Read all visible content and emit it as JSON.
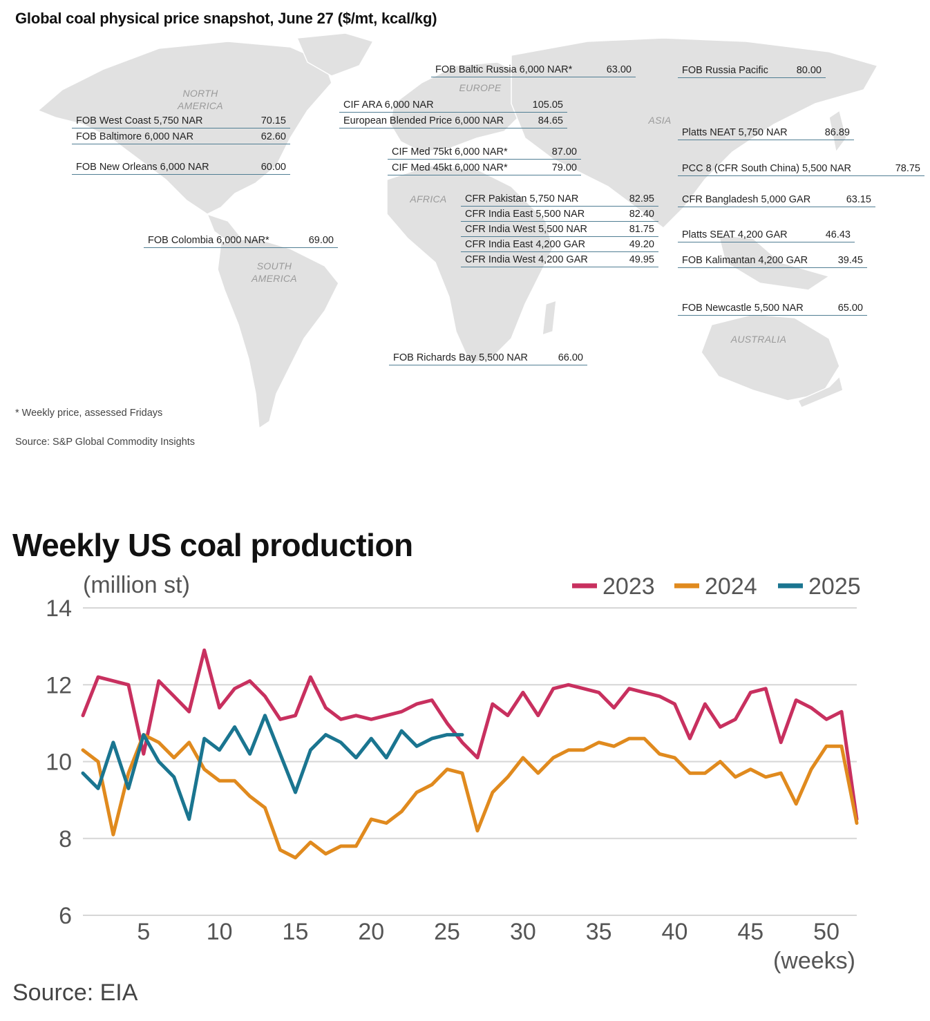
{
  "map": {
    "title": "Global coal physical price snapshot, June 27 ($/mt, kcal/kg)",
    "footnote": "* Weekly price, assessed Fridays",
    "source": "Source: S&P Global Commodity Insights",
    "regions": {
      "north_america": [
        "NORTH",
        "AMERICA"
      ],
      "south_america": [
        "SOUTH",
        "AMERICA"
      ],
      "europe": [
        "EUROPE"
      ],
      "africa": [
        "AFRICA"
      ],
      "asia": [
        "ASIA"
      ],
      "australia": [
        "AUSTRALIA"
      ]
    },
    "prices": [
      {
        "label": "FOB West Coast 5,750 NAR",
        "value": "70.15"
      },
      {
        "label": "FOB Baltimore 6,000 NAR",
        "value": "62.60"
      },
      {
        "label": "FOB New Orleans 6,000 NAR",
        "value": "60.00"
      },
      {
        "label": "FOB Colombia 6,000 NAR*",
        "value": "69.00"
      },
      {
        "label": "FOB Baltic Russia 6,000 NAR*",
        "value": "63.00"
      },
      {
        "label": "CIF ARA 6,000 NAR",
        "value": "105.05"
      },
      {
        "label": "European Blended Price 6,000 NAR",
        "value": "84.65"
      },
      {
        "label": "CIF Med 75kt 6,000 NAR*",
        "value": "87.00"
      },
      {
        "label": "CIF Med 45kt 6,000 NAR*",
        "value": "79.00"
      },
      {
        "label": "CFR Pakistan 5,750 NAR",
        "value": "82.95"
      },
      {
        "label": "CFR India East 5,500 NAR",
        "value": "82.40"
      },
      {
        "label": "CFR India West 5,500 NAR",
        "value": "81.75"
      },
      {
        "label": "CFR India East 4,200 GAR",
        "value": "49.20"
      },
      {
        "label": "CFR India West 4,200 GAR",
        "value": "49.95"
      },
      {
        "label": "FOB Richards Bay 5,500 NAR",
        "value": "66.00"
      },
      {
        "label": "FOB Russia Pacific",
        "value": "80.00"
      },
      {
        "label": "Platts NEAT 5,750 NAR",
        "value": "86.89"
      },
      {
        "label": "PCC 8 (CFR South China) 5,500 NAR",
        "value": "78.75"
      },
      {
        "label": "CFR Bangladesh 5,000 GAR",
        "value": "63.15"
      },
      {
        "label": "Platts SEAT 4,200 GAR",
        "value": "46.43"
      },
      {
        "label": "FOB Kalimantan 4,200 GAR",
        "value": "39.45"
      },
      {
        "label": "FOB Newcastle 5,500 NAR",
        "value": "65.00"
      }
    ]
  },
  "chart_data": {
    "type": "line",
    "title": "Weekly US coal production",
    "ylabel": "(million st)",
    "xlabel": "(weeks)",
    "ylim": [
      6,
      14
    ],
    "xlim": [
      1,
      52
    ],
    "yticks": [
      6,
      8,
      10,
      12,
      14
    ],
    "xticks": [
      5,
      10,
      15,
      20,
      25,
      30,
      35,
      40,
      45,
      50
    ],
    "grid": true,
    "legend_position": "top-right",
    "series": [
      {
        "name": "2023",
        "color": "#c8305f",
        "x": [
          1,
          2,
          3,
          4,
          5,
          6,
          7,
          8,
          9,
          10,
          11,
          12,
          13,
          14,
          15,
          16,
          17,
          18,
          19,
          20,
          21,
          22,
          23,
          24,
          25,
          26,
          27,
          28,
          29,
          30,
          31,
          32,
          33,
          34,
          35,
          36,
          37,
          38,
          39,
          40,
          41,
          42,
          43,
          44,
          45,
          46,
          47,
          48,
          49,
          50,
          51,
          52
        ],
        "values": [
          11.2,
          12.2,
          12.1,
          12.0,
          10.2,
          12.1,
          11.7,
          11.3,
          12.9,
          11.4,
          11.9,
          12.1,
          11.7,
          11.1,
          11.2,
          12.2,
          11.4,
          11.1,
          11.2,
          11.1,
          11.2,
          11.3,
          11.5,
          11.6,
          11.0,
          10.5,
          10.1,
          11.5,
          11.2,
          11.8,
          11.2,
          11.9,
          12.0,
          11.9,
          11.8,
          11.4,
          11.9,
          11.8,
          11.7,
          11.5,
          10.6,
          11.5,
          10.9,
          11.1,
          11.8,
          11.9,
          10.5,
          11.6,
          11.4,
          11.1,
          11.3,
          8.5
        ]
      },
      {
        "name": "2024",
        "color": "#e08a1e",
        "x": [
          1,
          2,
          3,
          4,
          5,
          6,
          7,
          8,
          9,
          10,
          11,
          12,
          13,
          14,
          15,
          16,
          17,
          18,
          19,
          20,
          21,
          22,
          23,
          24,
          25,
          26,
          27,
          28,
          29,
          30,
          31,
          32,
          33,
          34,
          35,
          36,
          37,
          38,
          39,
          40,
          41,
          42,
          43,
          44,
          45,
          46,
          47,
          48,
          49,
          50,
          51,
          52
        ],
        "values": [
          10.3,
          10.0,
          8.1,
          9.7,
          10.7,
          10.5,
          10.1,
          10.5,
          9.8,
          9.5,
          9.5,
          9.1,
          8.8,
          7.7,
          7.5,
          7.9,
          7.6,
          7.8,
          7.8,
          8.5,
          8.4,
          8.7,
          9.2,
          9.4,
          9.8,
          9.7,
          8.2,
          9.2,
          9.6,
          10.1,
          9.7,
          10.1,
          10.3,
          10.3,
          10.5,
          10.4,
          10.6,
          10.6,
          10.2,
          10.1,
          9.7,
          9.7,
          10.0,
          9.6,
          9.8,
          9.6,
          9.7,
          8.9,
          9.8,
          10.4,
          10.4,
          8.4
        ]
      },
      {
        "name": "2025",
        "color": "#1a7590",
        "x": [
          1,
          2,
          3,
          4,
          5,
          6,
          7,
          8,
          9,
          10,
          11,
          12,
          13,
          14,
          15,
          16,
          17,
          18,
          19,
          20,
          21,
          22,
          23,
          24,
          25,
          26
        ],
        "values": [
          9.7,
          9.3,
          10.5,
          9.3,
          10.7,
          10.0,
          9.6,
          8.5,
          10.6,
          10.3,
          10.9,
          10.2,
          11.2,
          10.2,
          9.2,
          10.3,
          10.7,
          10.5,
          10.1,
          10.6,
          10.1,
          10.8,
          10.4,
          10.6,
          10.7,
          10.7
        ]
      }
    ]
  },
  "chart": {
    "source": "Source: EIA"
  }
}
